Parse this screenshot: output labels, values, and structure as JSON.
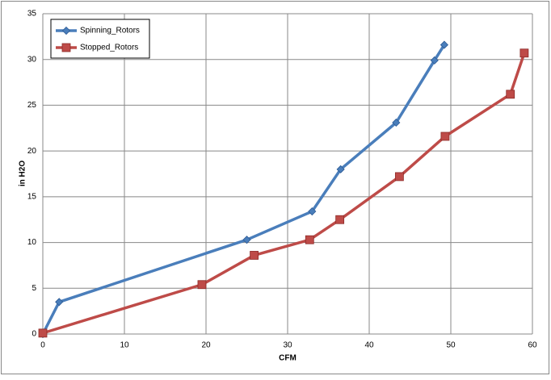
{
  "chart_data": {
    "type": "line",
    "xlabel": "CFM",
    "ylabel": "in H2O",
    "xlim": [
      0,
      60
    ],
    "xticks": [
      0,
      10,
      20,
      30,
      40,
      50,
      60
    ],
    "ylim": [
      0,
      35
    ],
    "yticks": [
      0,
      5,
      10,
      15,
      20,
      25,
      30,
      35
    ],
    "grid": true,
    "legend": "top-left",
    "series": [
      {
        "name": "Spinning_Rotors",
        "color": "#4a7ebb",
        "marker": "diamond",
        "x": [
          0,
          2.0,
          25.0,
          33.0,
          36.5,
          43.3,
          48.0,
          49.2
        ],
        "values": [
          0,
          3.5,
          10.3,
          13.4,
          18.0,
          23.1,
          29.9,
          31.6
        ]
      },
      {
        "name": "Stopped_Rotors",
        "color": "#be4b48",
        "marker": "square",
        "x": [
          0,
          19.5,
          25.9,
          32.7,
          36.4,
          43.7,
          49.3,
          57.3,
          59.0
        ],
        "values": [
          0.1,
          5.4,
          8.6,
          10.3,
          12.5,
          17.2,
          21.6,
          26.2,
          30.7
        ]
      }
    ]
  }
}
